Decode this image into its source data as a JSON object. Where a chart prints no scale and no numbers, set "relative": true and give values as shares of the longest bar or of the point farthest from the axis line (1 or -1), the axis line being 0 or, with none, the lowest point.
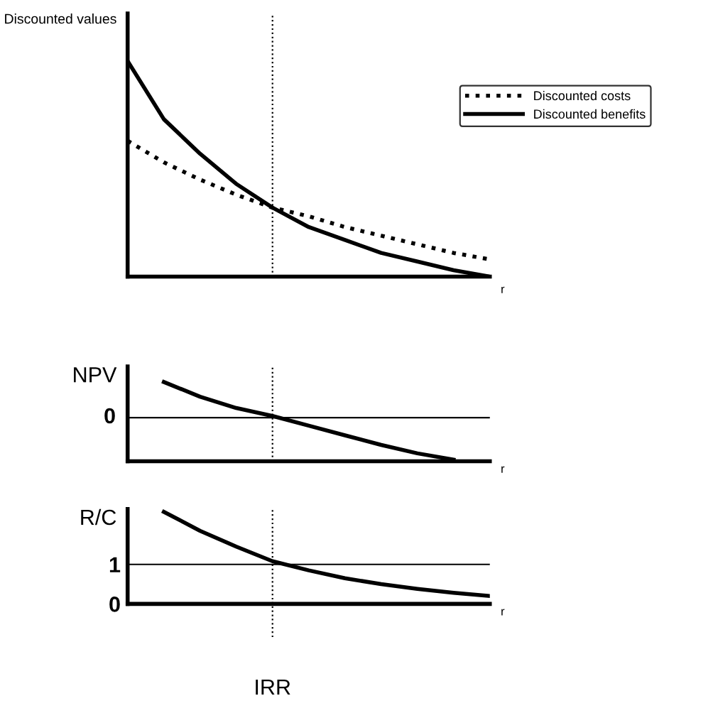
{
  "chart_data": [
    {
      "type": "line",
      "ylabel": "Discounted values",
      "xlabel": "r",
      "relative": true,
      "tick_labels": false,
      "legend": "right",
      "categories": [
        null,
        null,
        null,
        null,
        null,
        null,
        null,
        null,
        null,
        null,
        null
      ],
      "series": [
        {
          "name": "Discounted costs",
          "color": "#000000",
          "line_style": "dotted",
          "values": [
            0.63,
            0.53,
            0.45,
            0.38,
            0.32,
            0.28,
            0.23,
            0.19,
            0.15,
            0.11,
            0.08
          ]
        },
        {
          "name": "Discounted benefits",
          "color": "#000000",
          "line_style": "solid",
          "values": [
            1,
            0.73,
            0.57,
            0.43,
            0.32,
            0.23,
            0.17,
            0.11,
            0.07,
            0.03,
            0
          ]
        }
      ]
    },
    {
      "type": "line",
      "ylabel": "NPV",
      "xlabel": "r",
      "relative": true,
      "tick_labels": false,
      "categories": [
        null,
        null,
        null,
        null,
        null,
        null,
        null,
        null,
        null,
        null,
        null
      ],
      "ref_lines": [
        {
          "axis": "y",
          "value": 0,
          "label": "0"
        }
      ],
      "series": [
        {
          "color": "#000000",
          "line_style": "solid",
          "values": [
            null,
            0.85,
            0.5,
            0.23,
            0.04,
            -0.19,
            -0.42,
            -0.65,
            -0.85,
            -1,
            null
          ]
        }
      ]
    },
    {
      "type": "line",
      "ylabel": "R/C",
      "xlabel": "r",
      "tick_labels": "y",
      "ylim": [
        0,
        2.4
      ],
      "yticks": [
        0,
        1
      ],
      "categories": [
        null,
        null,
        null,
        null,
        null,
        null,
        null,
        null,
        null,
        null,
        null
      ],
      "ref_lines": [
        {
          "axis": "y",
          "value": 1,
          "label": null
        }
      ],
      "annotations": [
        "IRR"
      ],
      "series": [
        {
          "color": "#000000",
          "line_style": "solid",
          "values": [
            null,
            2.33,
            1.85,
            1.45,
            1.08,
            0.85,
            0.65,
            0.5,
            0.38,
            0.28,
            0.2
          ]
        }
      ]
    }
  ]
}
